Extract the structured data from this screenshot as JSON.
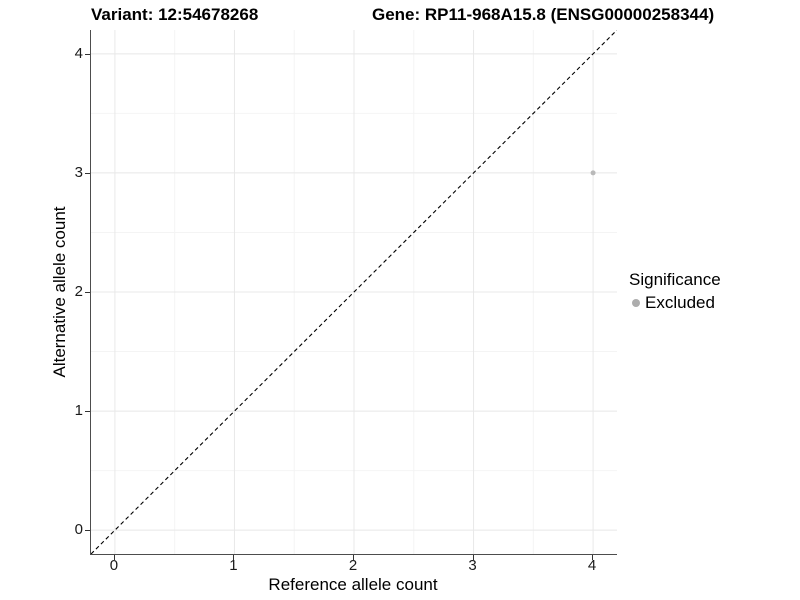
{
  "chart_data": {
    "type": "scatter",
    "title_left": "Variant: 12:54678268",
    "title_right": "Gene: RP11-968A15.8 (ENSG00000258344)",
    "xlabel": "Reference allele count",
    "ylabel": "Alternative allele count",
    "xlim": [
      -0.2,
      4.2
    ],
    "ylim": [
      -0.2,
      4.2
    ],
    "xticks": [
      0,
      1,
      2,
      3,
      4
    ],
    "yticks": [
      0,
      1,
      2,
      3,
      4
    ],
    "xticks_minor": [
      0.5,
      1.5,
      2.5,
      3.5
    ],
    "yticks_minor": [
      0.5,
      1.5,
      2.5,
      3.5
    ],
    "grid": "major and minor gridlines on white background",
    "legend_position": "right",
    "reference_line": {
      "kind": "identity y=x",
      "style": "dashed",
      "color": "#000000"
    },
    "series": [
      {
        "name": "Excluded",
        "color": "#b9b9b9",
        "points": [
          {
            "x": 4,
            "y": 3
          }
        ]
      }
    ],
    "legend": {
      "title": "Significance",
      "items": [
        {
          "label": "Excluded",
          "color": "#adadad"
        }
      ]
    }
  },
  "colors": {
    "background": "#ffffff",
    "grid_major": "#e8e8e8",
    "grid_minor": "#f4f4f4",
    "axis_line": "#4d4d4d",
    "tick_mark": "#333333",
    "tick_text": "#1a1a1a",
    "title_text": "#000000",
    "point_gray": "#b9b9b9"
  }
}
